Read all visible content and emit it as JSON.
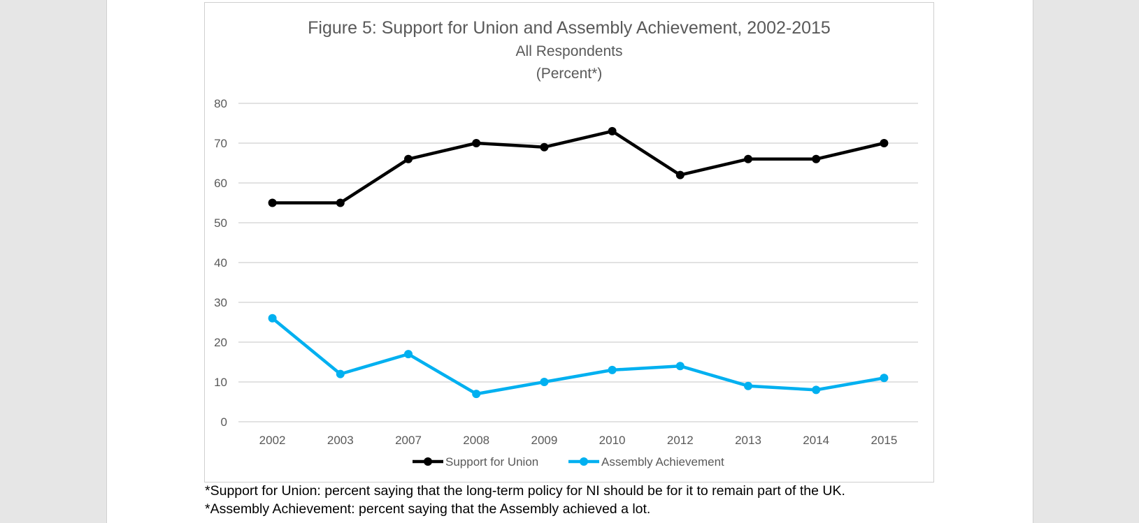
{
  "chart_data": {
    "type": "line",
    "title": "Figure 5: Support for Union and Assembly Achievement, 2002-2015",
    "subtitle_lines": [
      "All Respondents",
      "(Percent*)"
    ],
    "categories": [
      "2002",
      "2003",
      "2007",
      "2008",
      "2009",
      "2010",
      "2012",
      "2013",
      "2014",
      "2015"
    ],
    "ylim": [
      0,
      80
    ],
    "yticks": [
      0,
      10,
      20,
      30,
      40,
      50,
      60,
      70,
      80
    ],
    "grid": true,
    "legend_position": "bottom",
    "series": [
      {
        "name": "Support for Union",
        "color": "#000000",
        "values": [
          55,
          55,
          66,
          70,
          69,
          73,
          62,
          66,
          66,
          70
        ]
      },
      {
        "name": "Assembly Achievement",
        "color": "#00b0f0",
        "values": [
          26,
          12,
          17,
          7,
          10,
          13,
          14,
          9,
          8,
          11
        ]
      }
    ]
  },
  "footnotes": {
    "union": "*Support for Union: percent saying that the long-term policy for NI should be for it to remain part of the UK.",
    "assembly": "*Assembly Achievement: percent saying that the Assembly achieved a lot."
  }
}
